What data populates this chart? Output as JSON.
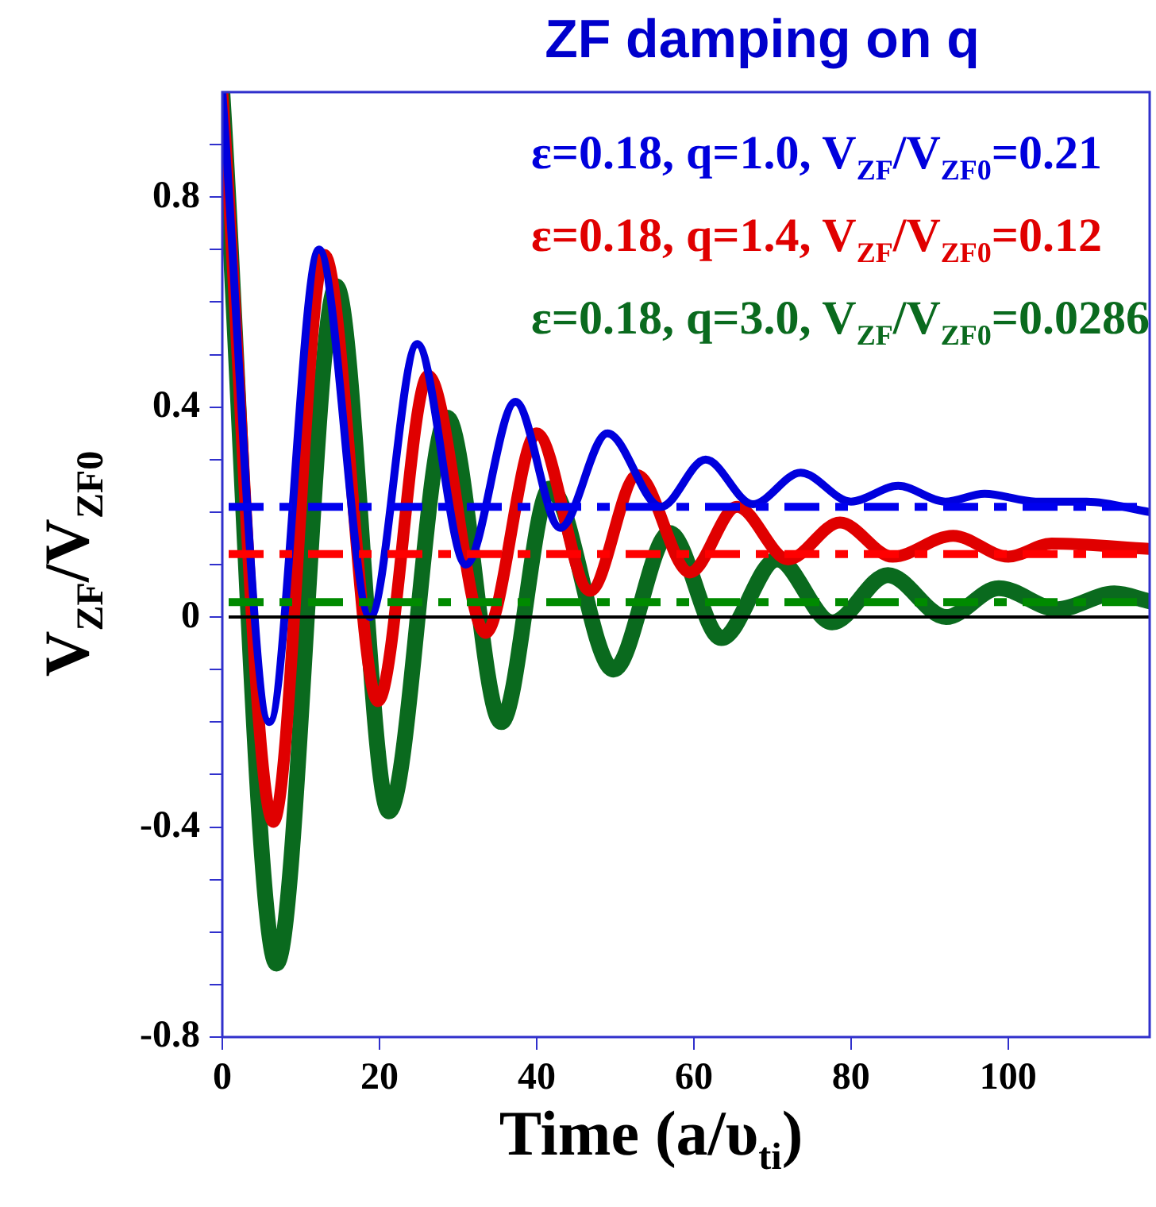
{
  "chart_data": {
    "type": "line",
    "title": "ZF damping on q",
    "xlabel": "Time (a/υ$_{ti}$)",
    "ylabel": "V$_{ZF}$/V$_{ZF0}$",
    "xlim": [
      0,
      118
    ],
    "ylim": [
      -0.8,
      1.0
    ],
    "xticks": [
      0,
      20,
      40,
      60,
      80,
      100
    ],
    "yticks": [
      -0.8,
      {
        "value": -0.7,
        "label": null
      },
      {
        "value": -0.6,
        "label": null
      },
      {
        "value": -0.5,
        "label": null
      },
      -0.4,
      {
        "value": -0.3,
        "label": null
      },
      {
        "value": -0.2,
        "label": null
      },
      {
        "value": -0.1,
        "label": null
      },
      0,
      {
        "value": 0.1,
        "label": null
      },
      {
        "value": 0.2,
        "label": null
      },
      {
        "value": 0.3,
        "label": null
      },
      0.4,
      {
        "value": 0.5,
        "label": null
      },
      {
        "value": 0.6,
        "label": null
      },
      {
        "value": 0.7,
        "label": null
      },
      0.8,
      {
        "value": 0.9,
        "label": null
      }
    ],
    "grid": false,
    "legend": "top right",
    "line_style": "solid",
    "series": [
      {
        "name": "ε=0.18, q=1.0, V$_{ZF}$/V$_{ZF0}$=0.21",
        "color": "#0000dd",
        "x": [
          0,
          6,
          12.3,
          18.8,
          24.8,
          31,
          37.3,
          43,
          49,
          55.8,
          61.5,
          67.5,
          73.6,
          80,
          86,
          92,
          97,
          103.5,
          110,
          118
        ],
        "values": [
          1.0,
          -0.2,
          0.7,
          0.0,
          0.52,
          0.1,
          0.41,
          0.17,
          0.35,
          0.21,
          0.3,
          0.215,
          0.275,
          0.22,
          0.25,
          0.22,
          0.235,
          0.22,
          0.22,
          0.2
        ]
      },
      {
        "name": "ε=0.18, q=1.4, V$_{ZF}$/V$_{ZF0}$=0.12",
        "color": "#e00000",
        "x": [
          0,
          6.5,
          13,
          19.8,
          26.2,
          33.5,
          40,
          46.8,
          52.8,
          59.5,
          65.5,
          72,
          78.6,
          85.3,
          93,
          100,
          105.5,
          118
        ],
        "values": [
          1.0,
          -0.39,
          0.69,
          -0.16,
          0.46,
          -0.03,
          0.35,
          0.05,
          0.27,
          0.085,
          0.21,
          0.11,
          0.18,
          0.115,
          0.155,
          0.115,
          0.14,
          0.13
        ]
      },
      {
        "name": "ε=0.18, q=3.0, V$_{ZF}$/V$_{ZF0}$=0.0286",
        "color": "#0a6a1e",
        "x": [
          0,
          6.9,
          14.5,
          21.2,
          28.6,
          35.5,
          41.7,
          49.8,
          56.9,
          63.5,
          70.6,
          77.6,
          84.7,
          92.1,
          98.8,
          106.3,
          113.5,
          118
        ],
        "values": [
          1.0,
          -0.66,
          0.63,
          -0.37,
          0.38,
          -0.2,
          0.245,
          -0.1,
          0.16,
          -0.04,
          0.11,
          -0.01,
          0.08,
          0.0,
          0.055,
          0.015,
          0.045,
          0.03
        ]
      }
    ],
    "ref_lines": [
      {
        "axis": "y",
        "value": 0,
        "color": "#000000",
        "line_style": "solid"
      },
      {
        "axis": "y",
        "value": 0.21,
        "color": "#0000ee",
        "line_style": "dashed"
      },
      {
        "axis": "y",
        "value": 0.12,
        "color": "#ff0000",
        "line_style": "dashed"
      },
      {
        "axis": "y",
        "value": 0.0286,
        "color": "#008a00",
        "line_style": "dashed"
      }
    ]
  }
}
